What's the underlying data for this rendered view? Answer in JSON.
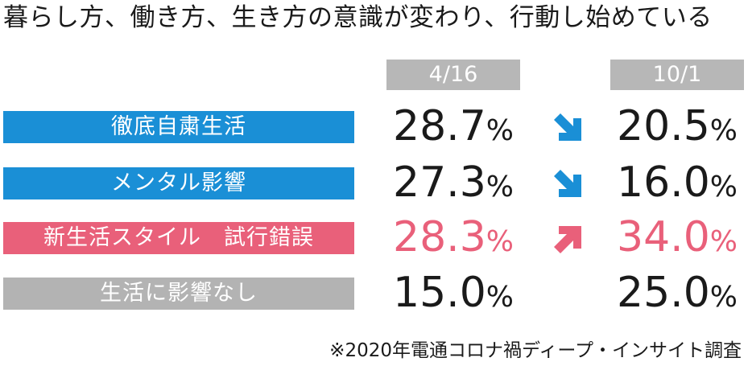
{
  "title": "暮らし方、働き方、生き方の意識が変わり、行動し始めている",
  "footnote": "※2020年電通コロナ禍ディープ・インサイト調査",
  "colors": {
    "blue": "#1a8fd6",
    "pink": "#e9607a",
    "gray": "#b3b3b3",
    "header": "#b7b7b7",
    "text": "#1a1a1a"
  },
  "percent_sign": "%",
  "chart_data": {
    "type": "table",
    "columns": [
      "4/16",
      "10/1"
    ],
    "rows": [
      {
        "label": "徹底自粛生活",
        "values": [
          "28.7",
          "20.5"
        ],
        "trend": "down",
        "color": "blue"
      },
      {
        "label": "メンタル影響",
        "values": [
          "27.3",
          "16.0"
        ],
        "trend": "down",
        "color": "blue"
      },
      {
        "label": "新生活スタイル　試行錯誤",
        "values": [
          "28.3",
          "34.0"
        ],
        "trend": "up",
        "color": "pink"
      },
      {
        "label": "生活に影響なし",
        "values": [
          "15.0",
          "25.0"
        ],
        "trend": "none",
        "color": "gray"
      }
    ]
  }
}
